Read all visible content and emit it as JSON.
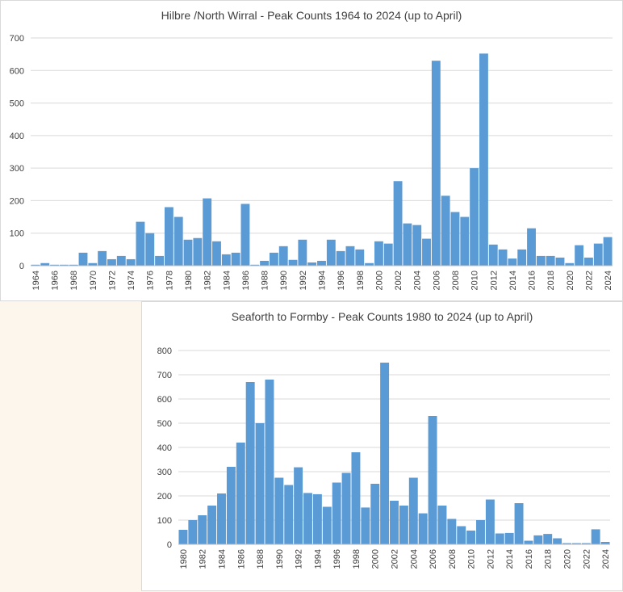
{
  "colors": {
    "bar": "#5b9bd5",
    "grid": "#d9d9d9",
    "text": "#404040"
  },
  "chart_data": [
    {
      "type": "bar",
      "title": "Hilbre /North Wirral - Peak Counts 1964 to 2024 (up to April)",
      "xlabel": "",
      "ylabel": "",
      "ylim": [
        0,
        700
      ],
      "yticks": [
        0,
        100,
        200,
        300,
        400,
        500,
        600,
        700
      ],
      "grid": true,
      "categories": [
        "1964",
        "1965",
        "1966",
        "1967",
        "1968",
        "1969",
        "1970",
        "1971",
        "1972",
        "1973",
        "1974",
        "1975",
        "1976",
        "1977",
        "1978",
        "1979",
        "1980",
        "1981",
        "1982",
        "1983",
        "1984",
        "1985",
        "1986",
        "1987",
        "1988",
        "1989",
        "1990",
        "1991",
        "1992",
        "1993",
        "1994",
        "1995",
        "1996",
        "1997",
        "1998",
        "1999",
        "2000",
        "2001",
        "2002",
        "2003",
        "2004",
        "2005",
        "2006",
        "2007",
        "2008",
        "2009",
        "2010",
        "2011",
        "2012",
        "2013",
        "2014",
        "2015",
        "2016",
        "2017",
        "2018",
        "2019",
        "2020",
        "2021",
        "2022",
        "2023",
        "2024"
      ],
      "tick_labels": [
        "1964",
        "1966",
        "1968",
        "1970",
        "1972",
        "1974",
        "1976",
        "1978",
        "1980",
        "1982",
        "1984",
        "1986",
        "1988",
        "1990",
        "1992",
        "1994",
        "1996",
        "1998",
        "2000",
        "2002",
        "2004",
        "2006",
        "2008",
        "2010",
        "2012",
        "2014",
        "2016",
        "2018",
        "2020",
        "2022",
        "2024"
      ],
      "values": [
        3,
        8,
        3,
        3,
        3,
        40,
        8,
        45,
        20,
        30,
        20,
        135,
        100,
        30,
        180,
        150,
        80,
        85,
        207,
        75,
        35,
        40,
        190,
        3,
        15,
        40,
        60,
        18,
        80,
        10,
        15,
        80,
        45,
        60,
        50,
        8,
        75,
        68,
        260,
        130,
        125,
        83,
        630,
        215,
        165,
        150,
        300,
        652,
        65,
        50,
        22,
        50,
        115,
        30,
        30,
        25,
        8,
        63,
        25,
        68,
        88
      ]
    },
    {
      "type": "bar",
      "title": "Seaforth to Formby - Peak Counts 1980 to 2024 (up to April)",
      "xlabel": "",
      "ylabel": "",
      "ylim": [
        0,
        800
      ],
      "yticks": [
        0,
        100,
        200,
        300,
        400,
        500,
        600,
        700,
        800
      ],
      "grid": true,
      "categories": [
        "1980",
        "1981",
        "1982",
        "1983",
        "1984",
        "1985",
        "1986",
        "1987",
        "1988",
        "1989",
        "1990",
        "1991",
        "1992",
        "1993",
        "1994",
        "1995",
        "1996",
        "1997",
        "1998",
        "1999",
        "2000",
        "2001",
        "2002",
        "2003",
        "2004",
        "2005",
        "2006",
        "2007",
        "2008",
        "2009",
        "2010",
        "2011",
        "2012",
        "2013",
        "2014",
        "2015",
        "2016",
        "2017",
        "2018",
        "2019",
        "2020",
        "2021",
        "2022",
        "2023",
        "2024"
      ],
      "tick_labels": [
        "1980",
        "1982",
        "1984",
        "1986",
        "1988",
        "1990",
        "1992",
        "1994",
        "1996",
        "1998",
        "2000",
        "2002",
        "2004",
        "2006",
        "2008",
        "2010",
        "2012",
        "2014",
        "2016",
        "2018",
        "2020",
        "2022",
        "2024"
      ],
      "values": [
        60,
        100,
        120,
        160,
        210,
        320,
        420,
        670,
        500,
        680,
        275,
        245,
        318,
        212,
        207,
        155,
        255,
        295,
        380,
        152,
        250,
        750,
        180,
        160,
        275,
        128,
        530,
        160,
        105,
        75,
        57,
        100,
        185,
        45,
        47,
        170,
        15,
        37,
        43,
        25,
        5,
        5,
        5,
        62,
        10
      ]
    }
  ]
}
